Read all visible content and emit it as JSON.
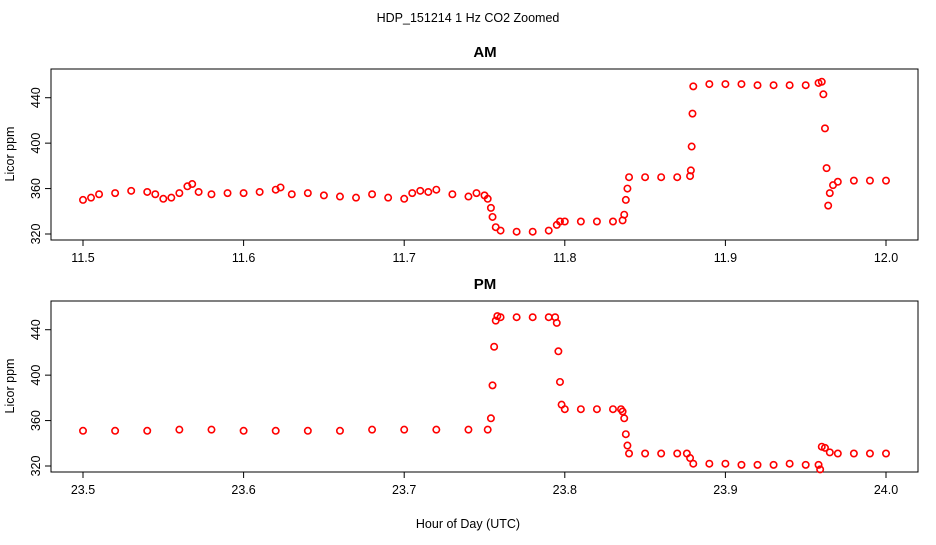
{
  "figure": {
    "main_title": "HDP_151214  1 Hz CO2 Zoomed",
    "xlabel": "Hour of Day (UTC)"
  },
  "chart_data": [
    {
      "type": "scatter",
      "title": "AM",
      "ylabel": "Licor ppm",
      "xlabel": "",
      "xlim": [
        11.5,
        12.0
      ],
      "ylim": [
        320,
        460
      ],
      "xticks": [
        11.5,
        11.6,
        11.7,
        11.8,
        11.9,
        12.0
      ],
      "xtick_labels": [
        "11.5",
        "11.6",
        "11.7",
        "11.8",
        "11.9",
        "12.0"
      ],
      "yticks": [
        320,
        360,
        400,
        440
      ],
      "ytick_labels": [
        "320",
        "360",
        "400",
        "440"
      ],
      "grid": false,
      "marker": "open-circle",
      "color": "#ff0000",
      "series": [
        {
          "x": [
            11.5,
            11.505,
            11.51,
            11.52,
            11.53,
            11.54,
            11.545,
            11.55,
            11.555,
            11.56,
            11.565,
            11.568,
            11.572,
            11.58,
            11.59,
            11.6,
            11.61,
            11.62,
            11.623,
            11.63,
            11.64,
            11.65,
            11.66,
            11.67,
            11.68,
            11.69,
            11.7,
            11.705,
            11.71,
            11.715,
            11.72,
            11.73,
            11.74,
            11.745,
            11.75,
            11.752,
            11.754,
            11.755,
            11.757,
            11.76,
            11.77,
            11.78,
            11.79,
            11.795,
            11.797,
            11.8,
            11.81,
            11.82,
            11.83,
            11.836,
            11.837,
            11.838,
            11.839,
            11.84,
            11.85,
            11.86,
            11.87,
            11.878,
            11.8785,
            11.879,
            11.8795,
            11.88,
            11.89,
            11.9,
            11.91,
            11.92,
            11.93,
            11.94,
            11.95,
            11.958,
            11.96,
            11.961,
            11.962,
            11.963,
            11.964,
            11.965,
            11.967,
            11.97,
            11.98,
            11.99,
            12.0
          ],
          "y": [
            350,
            352,
            355,
            356,
            358,
            357,
            355,
            351,
            352,
            356,
            362,
            364,
            357,
            355,
            356,
            356,
            357,
            359,
            361,
            355,
            356,
            354,
            353,
            352,
            355,
            352,
            351,
            356,
            358,
            357,
            359,
            355,
            353,
            356,
            354,
            351,
            343,
            335,
            326,
            323,
            322,
            322,
            323,
            328,
            331,
            331,
            331,
            331,
            331,
            332,
            337,
            350,
            360,
            370,
            370,
            370,
            370,
            371,
            376,
            397,
            426,
            450,
            452,
            452,
            452,
            451,
            451,
            451,
            451,
            453,
            454,
            443,
            413,
            378,
            345,
            356,
            363,
            366,
            367,
            367,
            367
          ]
        }
      ]
    },
    {
      "type": "scatter",
      "title": "PM",
      "ylabel": "Licor ppm",
      "xlabel": "",
      "xlim": [
        23.5,
        24.0
      ],
      "ylim": [
        320,
        460
      ],
      "xticks": [
        23.5,
        23.6,
        23.7,
        23.8,
        23.9,
        24.0
      ],
      "xtick_labels": [
        "23.5",
        "23.6",
        "23.7",
        "23.8",
        "23.9",
        "24.0"
      ],
      "yticks": [
        320,
        360,
        400,
        440
      ],
      "ytick_labels": [
        "320",
        "360",
        "400",
        "440"
      ],
      "grid": false,
      "marker": "open-circle",
      "color": "#ff0000",
      "series": [
        {
          "x": [
            23.5,
            23.52,
            23.54,
            23.56,
            23.58,
            23.6,
            23.62,
            23.64,
            23.66,
            23.68,
            23.7,
            23.72,
            23.74,
            23.752,
            23.754,
            23.755,
            23.756,
            23.757,
            23.758,
            23.76,
            23.77,
            23.78,
            23.79,
            23.794,
            23.795,
            23.796,
            23.797,
            23.798,
            23.8,
            23.81,
            23.82,
            23.83,
            23.835,
            23.836,
            23.837,
            23.838,
            23.839,
            23.84,
            23.85,
            23.86,
            23.87,
            23.876,
            23.878,
            23.88,
            23.89,
            23.9,
            23.91,
            23.92,
            23.93,
            23.94,
            23.95,
            23.958,
            23.959,
            23.96,
            23.962,
            23.965,
            23.97,
            23.98,
            23.99,
            24.0
          ],
          "y": [
            351,
            351,
            351,
            352,
            352,
            351,
            351,
            351,
            351,
            352,
            352,
            352,
            352,
            352,
            362,
            391,
            425,
            448,
            452,
            451,
            451,
            451,
            451,
            451,
            446,
            421,
            394,
            374,
            370,
            370,
            370,
            370,
            370,
            368,
            362,
            348,
            338,
            331,
            331,
            331,
            331,
            331,
            327,
            322,
            322,
            322,
            321,
            321,
            321,
            322,
            321,
            321,
            317,
            337,
            336,
            332,
            331,
            331,
            331,
            331
          ]
        }
      ]
    }
  ]
}
